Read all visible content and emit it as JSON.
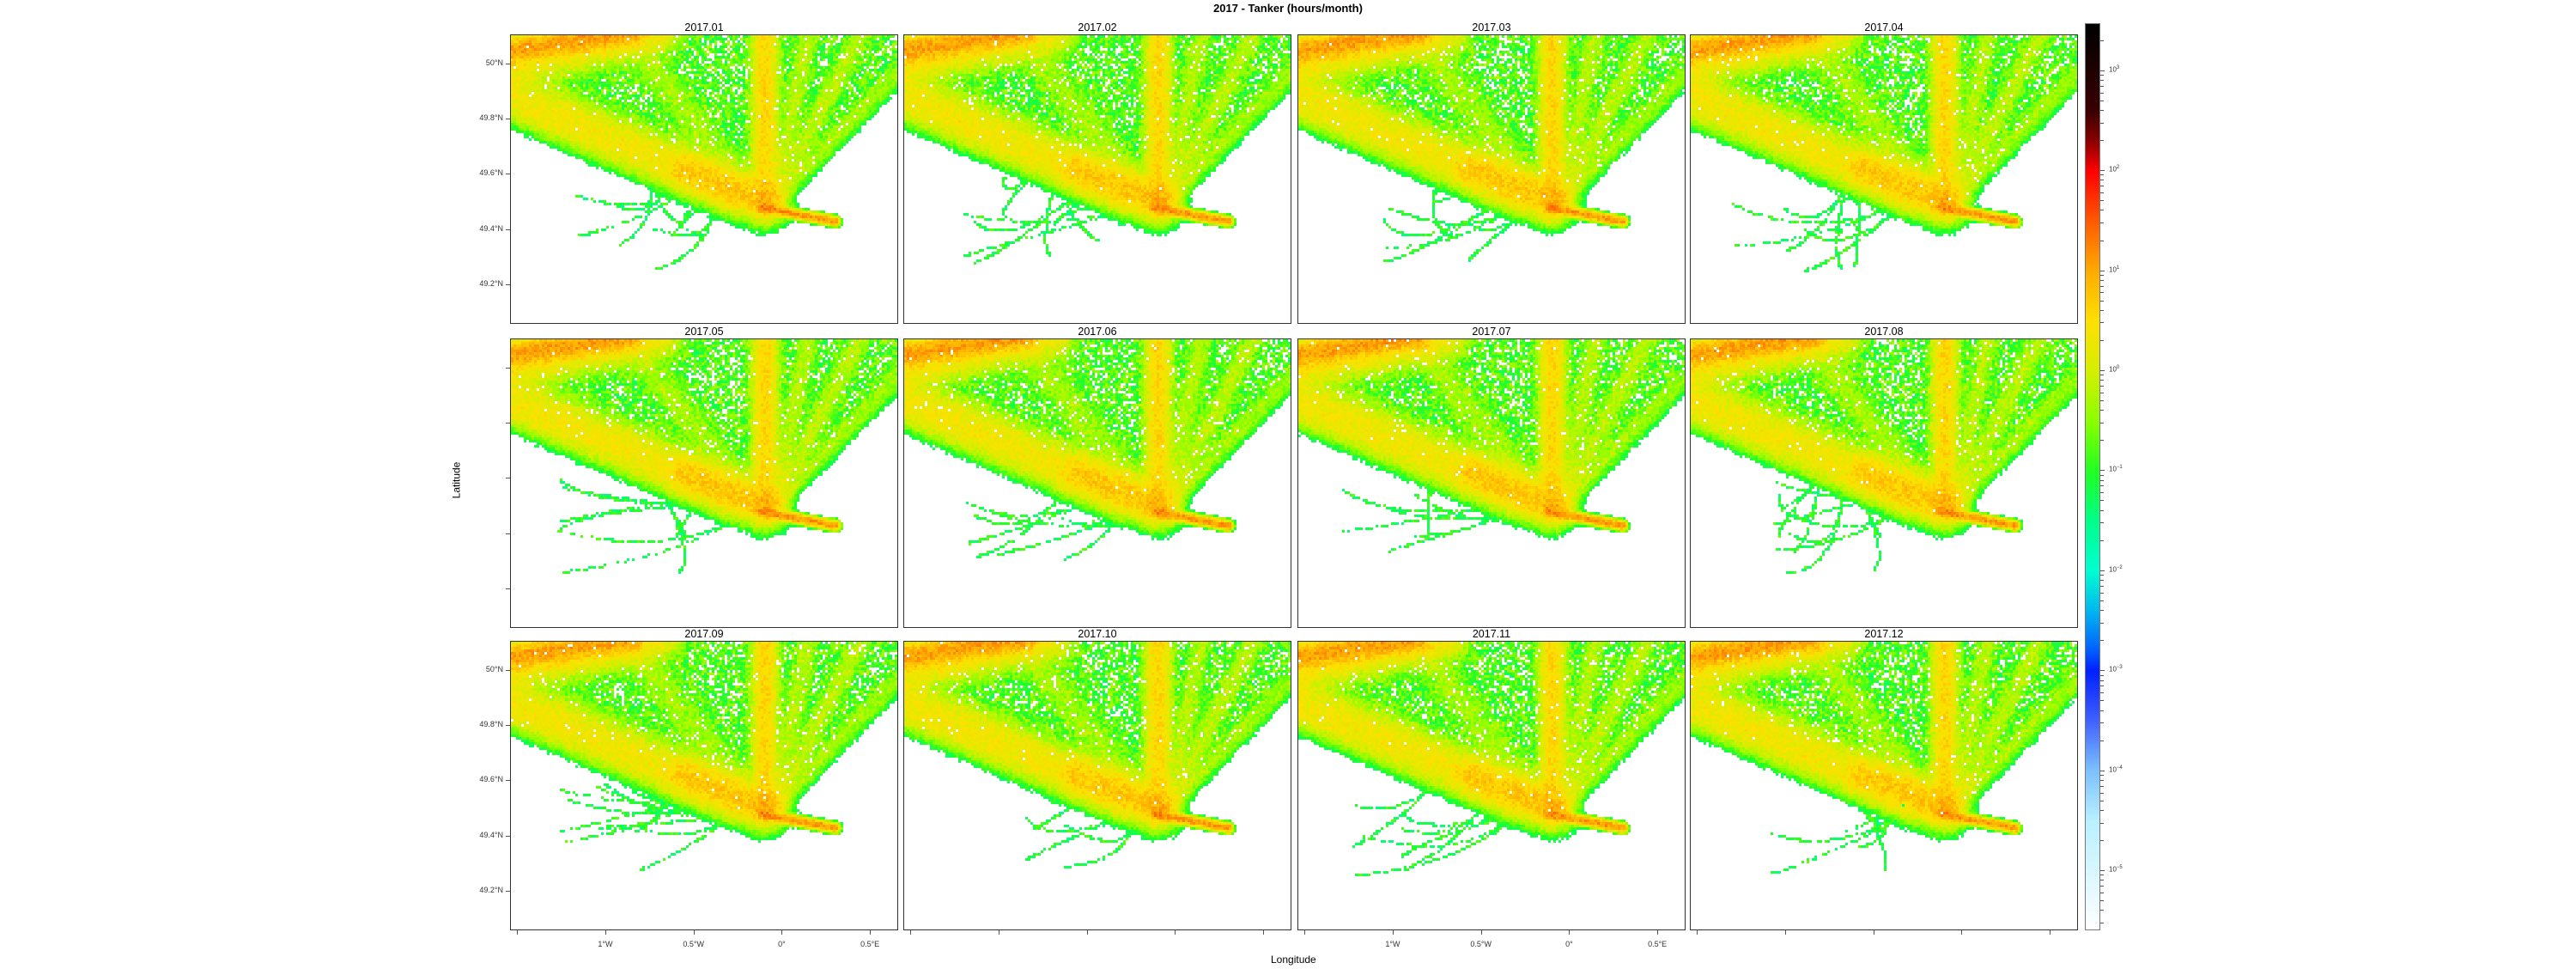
{
  "chart_data": {
    "type": "heatmap",
    "title": "2017 - Tanker (hours/month)",
    "xlabel": "Longitude",
    "ylabel": "Latitude",
    "xlim": [
      -1.54,
      0.66
    ],
    "ylim": [
      49.056,
      50.106
    ],
    "x_ticks": [
      {
        "value": -1.5,
        "label": ""
      },
      {
        "value": -1.0,
        "label": "1°W"
      },
      {
        "value": -0.5,
        "label": "0.5°W"
      },
      {
        "value": 0.0,
        "label": "0°"
      },
      {
        "value": 0.5,
        "label": "0.5°E"
      }
    ],
    "y_ticks": [
      {
        "value": 50.0,
        "label": "50°N"
      },
      {
        "value": 49.8,
        "label": "49.8°N"
      },
      {
        "value": 49.6,
        "label": "49.6°N"
      },
      {
        "value": 49.4,
        "label": "49.4°N"
      },
      {
        "value": 49.2,
        "label": "49.2°N"
      }
    ],
    "panels": [
      "2017.01",
      "2017.02",
      "2017.03",
      "2017.04",
      "2017.05",
      "2017.06",
      "2017.07",
      "2017.08",
      "2017.09",
      "2017.10",
      "2017.11",
      "2017.12"
    ],
    "colorbar": {
      "scale": "log10",
      "range_log10": [
        -5.6,
        3.47
      ],
      "ticks": [
        {
          "base": "10",
          "exp": "3",
          "value": 3
        },
        {
          "base": "10",
          "exp": "2",
          "value": 2
        },
        {
          "base": "10",
          "exp": "1",
          "value": 1
        },
        {
          "base": "10",
          "exp": "0",
          "value": 0
        },
        {
          "base": "10",
          "exp": "−1",
          "value": -1
        },
        {
          "base": "10",
          "exp": "−2",
          "value": -2
        },
        {
          "base": "10",
          "exp": "−3",
          "value": -3
        },
        {
          "base": "10",
          "exp": "−4",
          "value": -4
        },
        {
          "base": "10",
          "exp": "−5",
          "value": -5
        }
      ],
      "colors": [
        [
          3.47,
          "#000000"
        ],
        [
          2.6,
          "#3a0000"
        ],
        [
          2.3,
          "#8b0000"
        ],
        [
          2.0,
          "#ff0000"
        ],
        [
          1.5,
          "#ff5a00"
        ],
        [
          1.0,
          "#ffab00"
        ],
        [
          0.5,
          "#ffe000"
        ],
        [
          0.0,
          "#d6ee00"
        ],
        [
          -0.5,
          "#8cff00"
        ],
        [
          -1.0,
          "#22ff22"
        ],
        [
          -1.5,
          "#00ff88"
        ],
        [
          -2.0,
          "#00ffd0"
        ],
        [
          -2.4,
          "#00b8f0"
        ],
        [
          -2.8,
          "#0060ff"
        ],
        [
          -3.0,
          "#0020ff"
        ],
        [
          -3.5,
          "#4060ff"
        ],
        [
          -4.0,
          "#7cc0ff"
        ],
        [
          -4.5,
          "#b8f0ff"
        ],
        [
          -5.6,
          "#ffffff"
        ]
      ]
    },
    "hotspots_log10_hours": {
      "le_havre_port": 2.3,
      "main_lanes": 0.3,
      "background": -0.8
    }
  }
}
